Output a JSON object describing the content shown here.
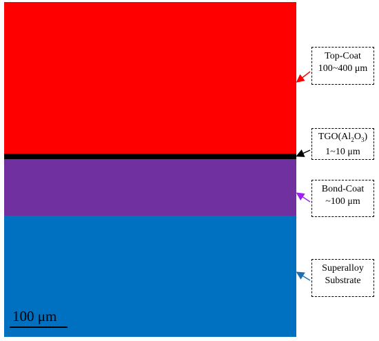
{
  "layers": [
    {
      "id": "top_coat",
      "color": "#ff0000"
    },
    {
      "id": "tgo",
      "color": "#000000"
    },
    {
      "id": "bond_coat",
      "color": "#7030a0"
    },
    {
      "id": "substrate",
      "color": "#0070c0"
    }
  ],
  "labels": {
    "top_coat": {
      "line1": "Top-Coat",
      "line2": "100~400 μm",
      "arrow_color": "#ff0000"
    },
    "tgo": {
      "line1_prefix": "TGO(Al",
      "sub1": "2",
      "mid": "O",
      "sub2": "3",
      "line1_suffix": ")",
      "line2": "1~10 μm",
      "arrow_color": "#000000"
    },
    "bond_coat": {
      "line1": "Bond-Coat",
      "line2": "~100 μm",
      "arrow_color": "#a020f0"
    },
    "substrate": {
      "line1": "Superalloy",
      "line2": "Substrate",
      "arrow_color": "#1f6fb0"
    }
  },
  "scale_bar": {
    "label": "100 μm"
  }
}
